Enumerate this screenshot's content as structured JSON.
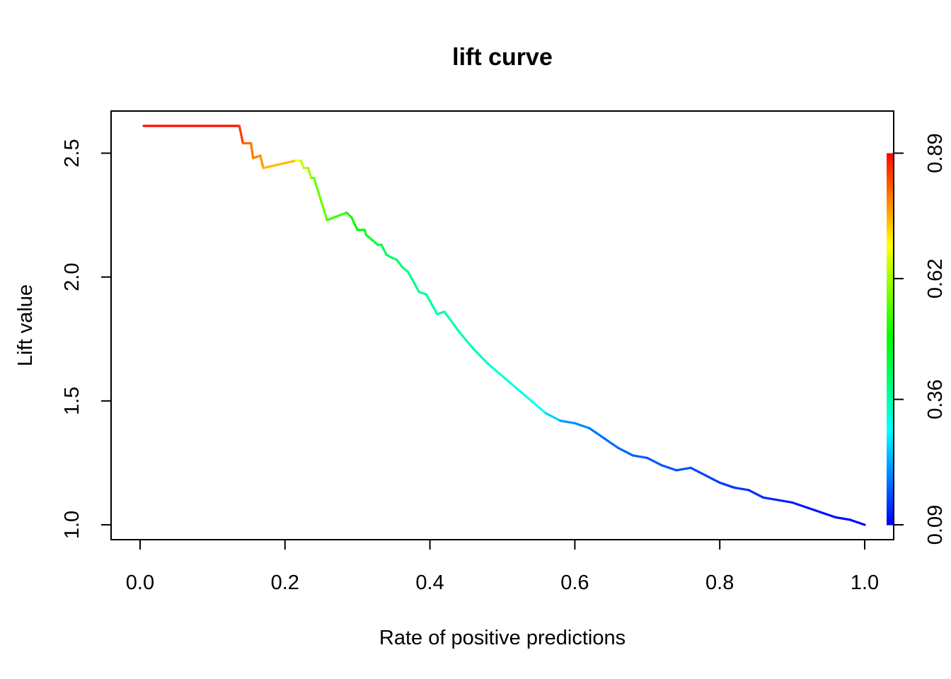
{
  "chart_data": {
    "type": "line",
    "title": "lift curve",
    "xlabel": "Rate of positive predictions",
    "ylabel": "Lift value",
    "xlim": [
      -0.04,
      1.04
    ],
    "ylim": [
      0.94,
      2.67
    ],
    "x_ticks": [
      "0.0",
      "0.2",
      "0.4",
      "0.6",
      "0.8",
      "1.0"
    ],
    "y_ticks": [
      "1.0",
      "1.5",
      "2.0",
      "2.5"
    ],
    "colorbar": {
      "ticks": [
        "0.09",
        "0.36",
        "0.62",
        "0.89"
      ],
      "range": [
        0.09,
        0.89
      ],
      "label_range": [
        0.0,
        1.5
      ]
    },
    "grid": false,
    "legend": "none",
    "series": [
      {
        "points": [
          [
            0.005,
            2.61,
            0.89
          ],
          [
            0.137,
            2.61,
            0.87
          ],
          [
            0.142,
            2.54,
            0.82
          ],
          [
            0.153,
            2.54,
            0.8
          ],
          [
            0.156,
            2.48,
            0.79
          ],
          [
            0.166,
            2.49,
            0.78
          ],
          [
            0.17,
            2.44,
            0.77
          ],
          [
            0.215,
            2.47,
            0.72
          ],
          [
            0.222,
            2.47,
            0.66
          ],
          [
            0.226,
            2.44,
            0.64
          ],
          [
            0.232,
            2.44,
            0.62
          ],
          [
            0.236,
            2.4,
            0.6
          ],
          [
            0.24,
            2.4,
            0.59
          ],
          [
            0.258,
            2.23,
            0.55
          ],
          [
            0.285,
            2.26,
            0.52
          ],
          [
            0.292,
            2.24,
            0.5
          ],
          [
            0.3,
            2.19,
            0.48
          ],
          [
            0.31,
            2.19,
            0.47
          ],
          [
            0.312,
            2.17,
            0.46
          ],
          [
            0.32,
            2.15,
            0.45
          ],
          [
            0.328,
            2.13,
            0.44
          ],
          [
            0.333,
            2.13,
            0.43
          ],
          [
            0.34,
            2.09,
            0.42
          ],
          [
            0.346,
            2.08,
            0.41
          ],
          [
            0.354,
            2.07,
            0.41
          ],
          [
            0.362,
            2.04,
            0.4
          ],
          [
            0.37,
            2.02,
            0.39
          ],
          [
            0.385,
            1.94,
            0.38
          ],
          [
            0.395,
            1.93,
            0.37
          ],
          [
            0.41,
            1.85,
            0.36
          ],
          [
            0.42,
            1.86,
            0.36
          ],
          [
            0.44,
            1.78,
            0.35
          ],
          [
            0.46,
            1.71,
            0.34
          ],
          [
            0.48,
            1.65,
            0.33
          ],
          [
            0.5,
            1.6,
            0.32
          ],
          [
            0.52,
            1.55,
            0.31
          ],
          [
            0.54,
            1.5,
            0.3
          ],
          [
            0.56,
            1.45,
            0.29
          ],
          [
            0.58,
            1.42,
            0.22
          ],
          [
            0.6,
            1.41,
            0.2
          ],
          [
            0.62,
            1.39,
            0.19
          ],
          [
            0.64,
            1.35,
            0.18
          ],
          [
            0.66,
            1.31,
            0.17
          ],
          [
            0.68,
            1.28,
            0.17
          ],
          [
            0.7,
            1.27,
            0.16
          ],
          [
            0.72,
            1.24,
            0.16
          ],
          [
            0.74,
            1.22,
            0.15
          ],
          [
            0.76,
            1.23,
            0.15
          ],
          [
            0.78,
            1.2,
            0.14
          ],
          [
            0.8,
            1.17,
            0.14
          ],
          [
            0.82,
            1.15,
            0.13
          ],
          [
            0.84,
            1.14,
            0.13
          ],
          [
            0.86,
            1.11,
            0.12
          ],
          [
            0.88,
            1.1,
            0.12
          ],
          [
            0.9,
            1.09,
            0.11
          ],
          [
            0.92,
            1.07,
            0.11
          ],
          [
            0.94,
            1.05,
            0.1
          ],
          [
            0.96,
            1.03,
            0.1
          ],
          [
            0.98,
            1.02,
            0.09
          ],
          [
            1.0,
            1.0,
            0.09
          ]
        ]
      }
    ]
  }
}
